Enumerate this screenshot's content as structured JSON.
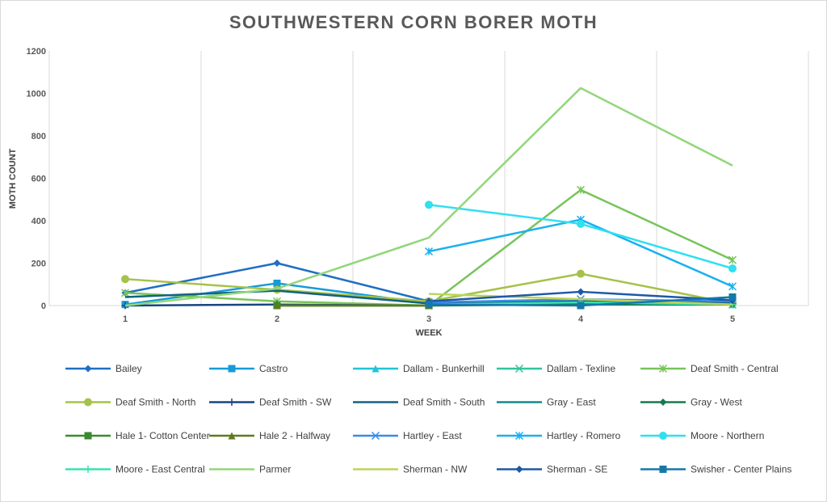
{
  "chart_data": {
    "type": "line",
    "title": "SOUTHWESTERN CORN BORER MOTH",
    "xlabel": "WEEK",
    "ylabel": "MOTH COUNT",
    "categories": [
      "1",
      "2",
      "3",
      "4",
      "5"
    ],
    "ylim": [
      0,
      1200
    ],
    "yticks": [
      "0",
      "200",
      "400",
      "600",
      "800",
      "1000",
      "1200"
    ],
    "grid": "vertical",
    "legend_position": "bottom",
    "series": [
      {
        "name": "Bailey",
        "color": "#1f6fc4",
        "marker": "diamond",
        "values": [
          60,
          200,
          20,
          null,
          null
        ]
      },
      {
        "name": "Castro",
        "color": "#149bd9",
        "marker": "square",
        "values": [
          5,
          105,
          10,
          null,
          null
        ]
      },
      {
        "name": "Dallam - Bunkerhill",
        "color": "#1fc4d9",
        "marker": "triangle",
        "values": [
          null,
          null,
          10,
          5,
          5
        ]
      },
      {
        "name": "Dallam - Texline",
        "color": "#2ec49a",
        "marker": "x",
        "values": [
          null,
          null,
          5,
          10,
          5
        ]
      },
      {
        "name": "Deaf Smith - Central",
        "color": "#78c45a",
        "marker": "star",
        "values": [
          60,
          20,
          0,
          545,
          215
        ]
      },
      {
        "name": "Deaf Smith - North",
        "color": "#a5c24a",
        "marker": "circle",
        "values": [
          125,
          75,
          20,
          150,
          10
        ]
      },
      {
        "name": "Deaf Smith - SW",
        "color": "#17467f",
        "marker": "plus",
        "values": [
          0,
          5,
          0,
          20,
          10
        ]
      },
      {
        "name": "Deaf Smith - South",
        "color": "#13627f",
        "marker": "none",
        "values": [
          40,
          70,
          10,
          20,
          15
        ]
      },
      {
        "name": "Gray - East",
        "color": "#148a8a",
        "marker": "none",
        "values": [
          null,
          null,
          5,
          10,
          5
        ]
      },
      {
        "name": "Gray - West",
        "color": "#157a50",
        "marker": "diamond",
        "values": [
          null,
          null,
          0,
          5,
          5
        ]
      },
      {
        "name": "Hale 1- Cotton Center",
        "color": "#3a8a2e",
        "marker": "square",
        "values": [
          null,
          0,
          0,
          null,
          null
        ]
      },
      {
        "name": "Hale 2 - Halfway",
        "color": "#5f7a1e",
        "marker": "triangle",
        "values": [
          null,
          0,
          0,
          null,
          null
        ]
      },
      {
        "name": "Hartley - East",
        "color": "#3a8be8",
        "marker": "x",
        "values": [
          null,
          null,
          15,
          30,
          20
        ]
      },
      {
        "name": "Hartley - Romero",
        "color": "#1ab0f0",
        "marker": "star",
        "values": [
          null,
          null,
          255,
          405,
          90
        ]
      },
      {
        "name": "Moore - Northern",
        "color": "#2ee0f0",
        "marker": "circle",
        "values": [
          null,
          null,
          475,
          385,
          175
        ]
      },
      {
        "name": "Moore - East Central",
        "color": "#3ae0b0",
        "marker": "plus",
        "values": [
          null,
          null,
          5,
          15,
          5
        ]
      },
      {
        "name": "Parmer",
        "color": "#92d67a",
        "marker": "none",
        "values": [
          0,
          80,
          320,
          1025,
          660
        ]
      },
      {
        "name": "Sherman - NW",
        "color": "#bcd35a",
        "marker": "none",
        "values": [
          null,
          null,
          55,
          30,
          5
        ]
      },
      {
        "name": "Sherman - SE",
        "color": "#1e58a8",
        "marker": "diamond",
        "values": [
          null,
          null,
          20,
          65,
          25
        ]
      },
      {
        "name": "Swisher - Center Plains",
        "color": "#1578a8",
        "marker": "square",
        "values": [
          null,
          null,
          5,
          0,
          40
        ]
      }
    ]
  }
}
